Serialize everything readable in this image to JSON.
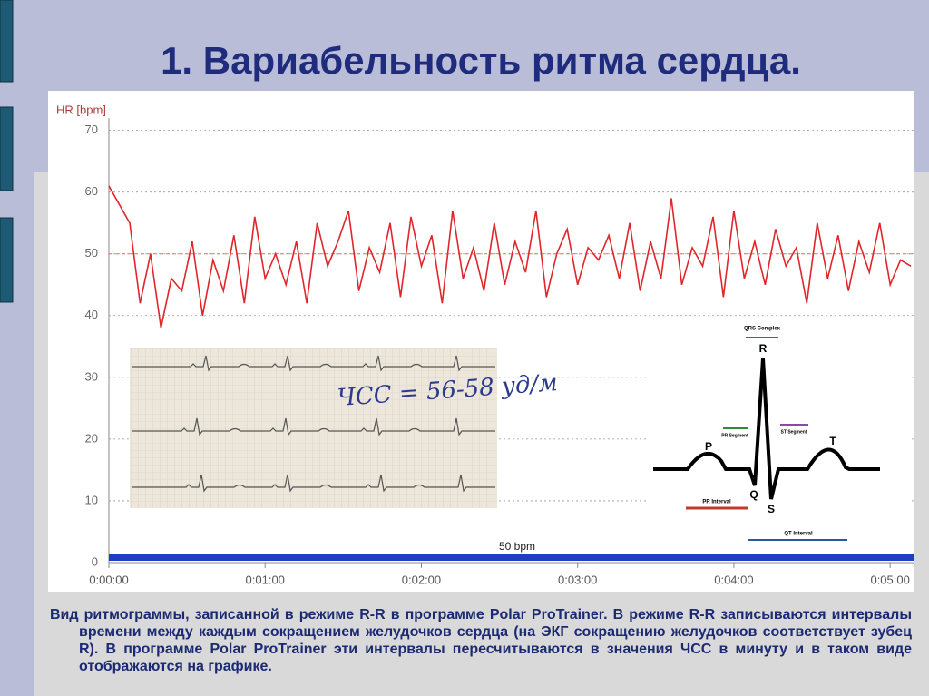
{
  "slide": {
    "title": "1. Вариабельность ритма сердца.",
    "caption": "Вид ритмограммы, записанной в режиме R-R в программе Polar ProTrainer. В режиме R-R записываются интервалы времени между каждым сокращением желудочков сердца (на ЭКГ сокращению желудочков соответствует зубец R). В программе Polar ProTrainer эти интервалы пересчитываются в значения ЧСС в минуту и в таком виде отображаются на графике."
  },
  "chart_data": {
    "type": "line",
    "y_label": "HR [bpm]",
    "x": [
      0,
      4,
      8,
      12,
      16,
      20,
      24,
      28,
      32,
      36,
      40,
      44,
      48,
      52,
      56,
      60,
      64,
      68,
      72,
      76,
      80,
      84,
      88,
      92,
      96,
      100,
      104,
      108,
      112,
      116,
      120,
      124,
      128,
      132,
      136,
      140,
      144,
      148,
      152,
      156,
      160,
      164,
      168,
      172,
      176,
      180,
      184,
      188,
      192,
      196,
      200,
      204,
      208,
      212,
      216,
      220,
      224,
      228,
      232,
      236,
      240,
      244,
      248,
      252,
      256,
      260,
      264,
      268,
      272,
      276,
      280,
      284,
      288,
      292,
      296,
      300,
      304,
      308
    ],
    "series": [
      {
        "color": "#e0262b",
        "values": [
          61,
          58,
          55,
          42,
          50,
          38,
          46,
          44,
          52,
          40,
          49,
          44,
          53,
          42,
          56,
          46,
          50,
          45,
          52,
          42,
          55,
          48,
          52,
          57,
          44,
          51,
          47,
          55,
          43,
          56,
          48,
          53,
          42,
          57,
          46,
          51,
          44,
          55,
          45,
          52,
          47,
          57,
          43,
          50,
          54,
          45,
          51,
          49,
          53,
          46,
          55,
          44,
          52,
          46,
          59,
          45,
          51,
          48,
          56,
          43,
          57,
          46,
          52,
          45,
          54,
          48,
          51,
          42,
          55,
          46,
          53,
          44,
          52,
          47,
          55,
          45,
          49,
          48
        ]
      }
    ],
    "xlim": [
      0,
      309
    ],
    "ylim": [
      0,
      72
    ],
    "xticks": [
      {
        "value": 0,
        "label": "0:00:00"
      },
      {
        "value": 60,
        "label": "0:01:00"
      },
      {
        "value": 120,
        "label": "0:02:00"
      },
      {
        "value": 180,
        "label": "0:03:00"
      },
      {
        "value": 240,
        "label": "0:04:00"
      },
      {
        "value": 300,
        "label": "0:05:00"
      }
    ],
    "yticks": [
      0,
      10,
      20,
      30,
      40,
      50,
      60,
      70
    ],
    "grid": true,
    "reference_line": 50,
    "annotation": "50 bpm"
  },
  "ecg_strip": {
    "note": "ЧСС = 56-58 уд/м"
  },
  "ecg_diagram": {
    "labels": [
      "QRS Complex",
      "R",
      "P",
      "PR Segment",
      "ST Segment",
      "T",
      "Q",
      "S",
      "PR Interval",
      "QT Interval"
    ]
  }
}
